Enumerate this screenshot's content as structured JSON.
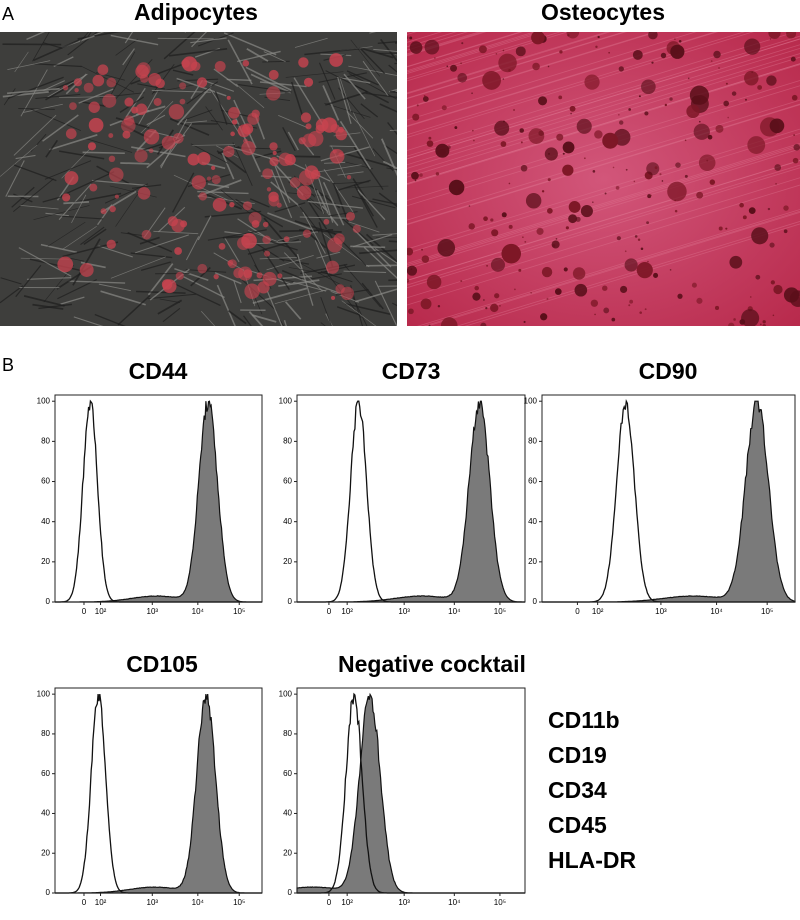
{
  "panel_a": {
    "label": "A",
    "images": [
      {
        "title": "Adipocytes"
      },
      {
        "title": "Osteocytes"
      }
    ]
  },
  "panel_b": {
    "label": "B",
    "plots": [
      {
        "title": "CD44",
        "x_ticks": [
          "0",
          "10²",
          "10³",
          "10⁴",
          "10⁵"
        ],
        "y_ticks": [
          "0",
          "20",
          "40",
          "60",
          "80",
          "100"
        ]
      },
      {
        "title": "CD73",
        "x_ticks": [
          "0",
          "10²",
          "10³",
          "10⁴",
          "10⁵"
        ],
        "y_ticks": [
          "0",
          "20",
          "40",
          "60",
          "80",
          "100"
        ]
      },
      {
        "title": "CD90",
        "x_ticks": [
          "0",
          "10²",
          "10³",
          "10⁴",
          "10⁵"
        ],
        "y_ticks": [
          "0",
          "20",
          "40",
          "60",
          "80",
          "100"
        ]
      },
      {
        "title": "CD105",
        "x_ticks": [
          "0",
          "10²",
          "10³",
          "10⁴",
          "10⁵"
        ],
        "y_ticks": [
          "0",
          "20",
          "40",
          "60",
          "80",
          "100"
        ]
      },
      {
        "title": "Negative cocktail",
        "x_ticks": [
          "0",
          "10²",
          "10³",
          "10⁴",
          "10⁵"
        ],
        "y_ticks": [
          "0",
          "20",
          "40",
          "60",
          "80",
          "100"
        ]
      }
    ],
    "negative_markers": [
      "CD11b",
      "CD19",
      "CD34",
      "CD45",
      "HLA-DR"
    ]
  }
}
